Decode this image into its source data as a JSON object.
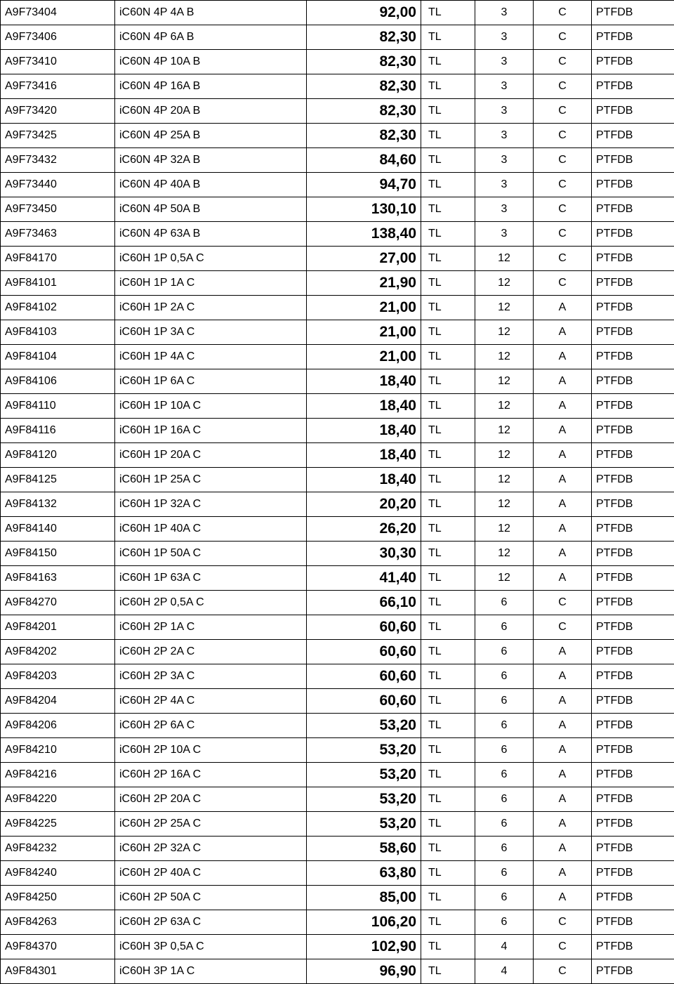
{
  "rows": [
    {
      "code": "A9F73404",
      "desc": "iC60N 4P 4A B",
      "price": "92,00",
      "cur": "TL",
      "qty": "3",
      "cat": "C",
      "tag": "PTFDB"
    },
    {
      "code": "A9F73406",
      "desc": "iC60N 4P 6A B",
      "price": "82,30",
      "cur": "TL",
      "qty": "3",
      "cat": "C",
      "tag": "PTFDB"
    },
    {
      "code": "A9F73410",
      "desc": "iC60N 4P 10A B",
      "price": "82,30",
      "cur": "TL",
      "qty": "3",
      "cat": "C",
      "tag": "PTFDB"
    },
    {
      "code": "A9F73416",
      "desc": "iC60N 4P 16A B",
      "price": "82,30",
      "cur": "TL",
      "qty": "3",
      "cat": "C",
      "tag": "PTFDB"
    },
    {
      "code": "A9F73420",
      "desc": "iC60N 4P 20A B",
      "price": "82,30",
      "cur": "TL",
      "qty": "3",
      "cat": "C",
      "tag": "PTFDB"
    },
    {
      "code": "A9F73425",
      "desc": "iC60N 4P 25A B",
      "price": "82,30",
      "cur": "TL",
      "qty": "3",
      "cat": "C",
      "tag": "PTFDB"
    },
    {
      "code": "A9F73432",
      "desc": "iC60N 4P 32A B",
      "price": "84,60",
      "cur": "TL",
      "qty": "3",
      "cat": "C",
      "tag": "PTFDB"
    },
    {
      "code": "A9F73440",
      "desc": "iC60N 4P 40A B",
      "price": "94,70",
      "cur": "TL",
      "qty": "3",
      "cat": "C",
      "tag": "PTFDB"
    },
    {
      "code": "A9F73450",
      "desc": "iC60N 4P 50A B",
      "price": "130,10",
      "cur": "TL",
      "qty": "3",
      "cat": "C",
      "tag": "PTFDB"
    },
    {
      "code": "A9F73463",
      "desc": "iC60N 4P 63A B",
      "price": "138,40",
      "cur": "TL",
      "qty": "3",
      "cat": "C",
      "tag": "PTFDB"
    },
    {
      "code": "A9F84170",
      "desc": "iC60H 1P 0,5A C",
      "price": "27,00",
      "cur": "TL",
      "qty": "12",
      "cat": "C",
      "tag": "PTFDB"
    },
    {
      "code": "A9F84101",
      "desc": "iC60H 1P 1A C",
      "price": "21,90",
      "cur": "TL",
      "qty": "12",
      "cat": "C",
      "tag": "PTFDB"
    },
    {
      "code": "A9F84102",
      "desc": "iC60H 1P 2A C",
      "price": "21,00",
      "cur": "TL",
      "qty": "12",
      "cat": "A",
      "tag": "PTFDB"
    },
    {
      "code": "A9F84103",
      "desc": "iC60H 1P 3A C",
      "price": "21,00",
      "cur": "TL",
      "qty": "12",
      "cat": "A",
      "tag": "PTFDB"
    },
    {
      "code": "A9F84104",
      "desc": "iC60H 1P 4A C",
      "price": "21,00",
      "cur": "TL",
      "qty": "12",
      "cat": "A",
      "tag": "PTFDB"
    },
    {
      "code": "A9F84106",
      "desc": "iC60H 1P 6A C",
      "price": "18,40",
      "cur": "TL",
      "qty": "12",
      "cat": "A",
      "tag": "PTFDB"
    },
    {
      "code": "A9F84110",
      "desc": "iC60H 1P 10A C",
      "price": "18,40",
      "cur": "TL",
      "qty": "12",
      "cat": "A",
      "tag": "PTFDB"
    },
    {
      "code": "A9F84116",
      "desc": "iC60H 1P 16A C",
      "price": "18,40",
      "cur": "TL",
      "qty": "12",
      "cat": "A",
      "tag": "PTFDB"
    },
    {
      "code": "A9F84120",
      "desc": "iC60H 1P 20A C",
      "price": "18,40",
      "cur": "TL",
      "qty": "12",
      "cat": "A",
      "tag": "PTFDB"
    },
    {
      "code": "A9F84125",
      "desc": "iC60H 1P 25A C",
      "price": "18,40",
      "cur": "TL",
      "qty": "12",
      "cat": "A",
      "tag": "PTFDB"
    },
    {
      "code": "A9F84132",
      "desc": "iC60H 1P 32A C",
      "price": "20,20",
      "cur": "TL",
      "qty": "12",
      "cat": "A",
      "tag": "PTFDB"
    },
    {
      "code": "A9F84140",
      "desc": "iC60H 1P 40A C",
      "price": "26,20",
      "cur": "TL",
      "qty": "12",
      "cat": "A",
      "tag": "PTFDB"
    },
    {
      "code": "A9F84150",
      "desc": "iC60H 1P 50A C",
      "price": "30,30",
      "cur": "TL",
      "qty": "12",
      "cat": "A",
      "tag": "PTFDB"
    },
    {
      "code": "A9F84163",
      "desc": "iC60H 1P 63A C",
      "price": "41,40",
      "cur": "TL",
      "qty": "12",
      "cat": "A",
      "tag": "PTFDB"
    },
    {
      "code": "A9F84270",
      "desc": "iC60H 2P 0,5A C",
      "price": "66,10",
      "cur": "TL",
      "qty": "6",
      "cat": "C",
      "tag": "PTFDB"
    },
    {
      "code": "A9F84201",
      "desc": "iC60H 2P 1A C",
      "price": "60,60",
      "cur": "TL",
      "qty": "6",
      "cat": "C",
      "tag": "PTFDB"
    },
    {
      "code": "A9F84202",
      "desc": "iC60H 2P 2A C",
      "price": "60,60",
      "cur": "TL",
      "qty": "6",
      "cat": "A",
      "tag": "PTFDB"
    },
    {
      "code": "A9F84203",
      "desc": "iC60H 2P 3A C",
      "price": "60,60",
      "cur": "TL",
      "qty": "6",
      "cat": "A",
      "tag": "PTFDB"
    },
    {
      "code": "A9F84204",
      "desc": "iC60H 2P 4A C",
      "price": "60,60",
      "cur": "TL",
      "qty": "6",
      "cat": "A",
      "tag": "PTFDB"
    },
    {
      "code": "A9F84206",
      "desc": "iC60H 2P 6A C",
      "price": "53,20",
      "cur": "TL",
      "qty": "6",
      "cat": "A",
      "tag": "PTFDB"
    },
    {
      "code": "A9F84210",
      "desc": "iC60H 2P 10A C",
      "price": "53,20",
      "cur": "TL",
      "qty": "6",
      "cat": "A",
      "tag": "PTFDB"
    },
    {
      "code": "A9F84216",
      "desc": "iC60H 2P 16A C",
      "price": "53,20",
      "cur": "TL",
      "qty": "6",
      "cat": "A",
      "tag": "PTFDB"
    },
    {
      "code": "A9F84220",
      "desc": "iC60H 2P 20A C",
      "price": "53,20",
      "cur": "TL",
      "qty": "6",
      "cat": "A",
      "tag": "PTFDB"
    },
    {
      "code": "A9F84225",
      "desc": "iC60H 2P 25A C",
      "price": "53,20",
      "cur": "TL",
      "qty": "6",
      "cat": "A",
      "tag": "PTFDB"
    },
    {
      "code": "A9F84232",
      "desc": "iC60H 2P 32A C",
      "price": "58,60",
      "cur": "TL",
      "qty": "6",
      "cat": "A",
      "tag": "PTFDB"
    },
    {
      "code": "A9F84240",
      "desc": "iC60H 2P 40A C",
      "price": "63,80",
      "cur": "TL",
      "qty": "6",
      "cat": "A",
      "tag": "PTFDB"
    },
    {
      "code": "A9F84250",
      "desc": "iC60H 2P 50A C",
      "price": "85,00",
      "cur": "TL",
      "qty": "6",
      "cat": "A",
      "tag": "PTFDB"
    },
    {
      "code": "A9F84263",
      "desc": "iC60H 2P 63A C",
      "price": "106,20",
      "cur": "TL",
      "qty": "6",
      "cat": "C",
      "tag": "PTFDB"
    },
    {
      "code": "A9F84370",
      "desc": "iC60H 3P 0,5A C",
      "price": "102,90",
      "cur": "TL",
      "qty": "4",
      "cat": "C",
      "tag": "PTFDB"
    },
    {
      "code": "A9F84301",
      "desc": "iC60H 3P 1A C",
      "price": "96,90",
      "cur": "TL",
      "qty": "4",
      "cat": "C",
      "tag": "PTFDB"
    }
  ]
}
